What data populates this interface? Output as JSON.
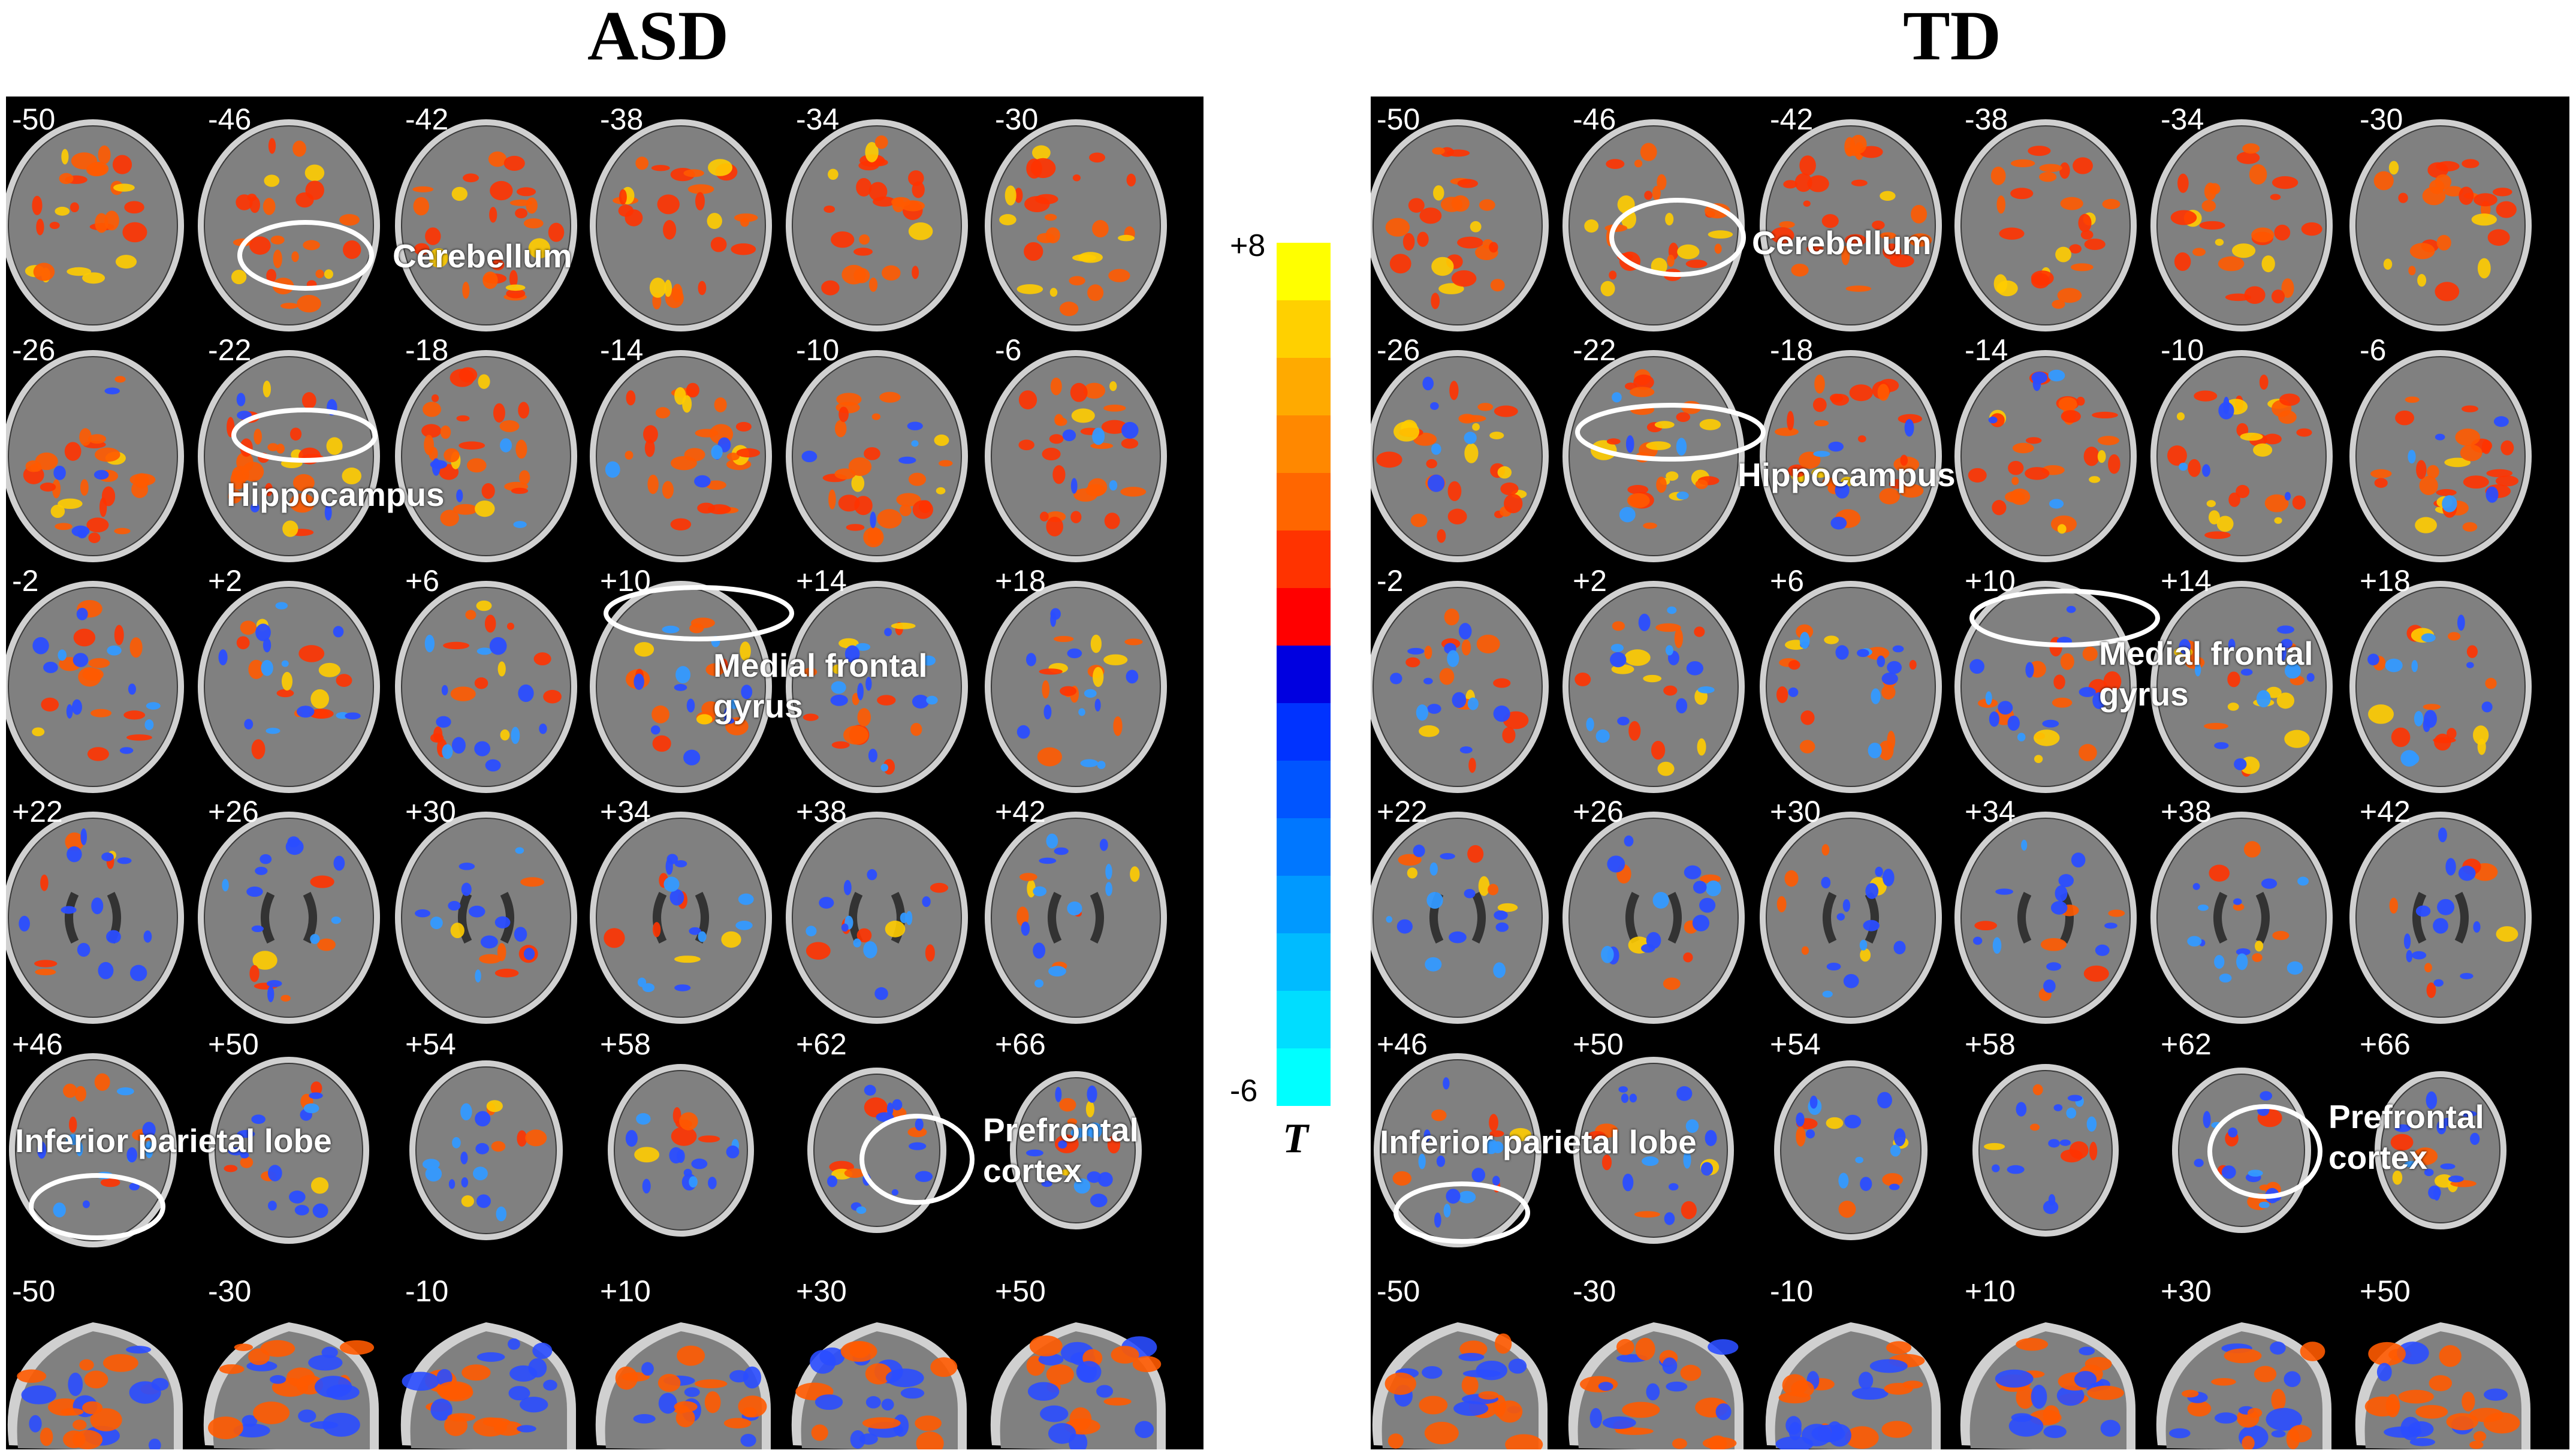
{
  "panels": [
    {
      "id": "asd",
      "title": "ASD",
      "axial_rows": [
        [
          "-50",
          "-46",
          "-42",
          "-38",
          "-34",
          "-30"
        ],
        [
          "-26",
          "-22",
          "-18",
          "-14",
          "-10",
          "-6"
        ],
        [
          "-2",
          "+2",
          "+6",
          "+10",
          "+14",
          "+18"
        ],
        [
          "+22",
          "+26",
          "+30",
          "+34",
          "+38",
          "+42"
        ],
        [
          "+46",
          "+50",
          "+54",
          "+58",
          "+62",
          "+66"
        ]
      ],
      "sagittal_row": [
        "-50",
        "-30",
        "-10",
        "+10",
        "+30",
        "+50"
      ],
      "regions": [
        "Cerebellum",
        "Hippocampus",
        "Medial frontal\ngyrus",
        "Inferior parietal lobe",
        "Prefrontal\ncortex"
      ]
    },
    {
      "id": "td",
      "title": "TD",
      "axial_rows": [
        [
          "-50",
          "-46",
          "-42",
          "-38",
          "-34",
          "-30"
        ],
        [
          "-26",
          "-22",
          "-18",
          "-14",
          "-10",
          "-6"
        ],
        [
          "-2",
          "+2",
          "+6",
          "+10",
          "+14",
          "+18"
        ],
        [
          "+22",
          "+26",
          "+30",
          "+34",
          "+38",
          "+42"
        ],
        [
          "+46",
          "+50",
          "+54",
          "+58",
          "+62",
          "+66"
        ]
      ],
      "sagittal_row": [
        "-50",
        "-30",
        "-10",
        "+10",
        "+30",
        "+50"
      ],
      "regions": [
        "Cerebellum",
        "Hippocampus",
        "Medial frontal\ngyrus",
        "Inferior parietal lobe",
        "Prefrontal\ncortex"
      ]
    }
  ],
  "colorbar": {
    "max_label": "+8",
    "min_label": "-6",
    "axis_label": "T",
    "colors_top_to_bottom": [
      "#ffff00",
      "#ffd000",
      "#ffaa00",
      "#ff8800",
      "#ff6600",
      "#ff3300",
      "#ff0000",
      "#0000e0",
      "#0033ff",
      "#0055ff",
      "#0077ff",
      "#0099ff",
      "#00bbff",
      "#00ddff",
      "#00ffff"
    ]
  },
  "colors": {
    "background": "#000000",
    "brain": "#808080",
    "skull": "#d0d0d0",
    "hot": "#ff5a00",
    "cold": "#2a4dff",
    "circle": "#ffffff"
  }
}
